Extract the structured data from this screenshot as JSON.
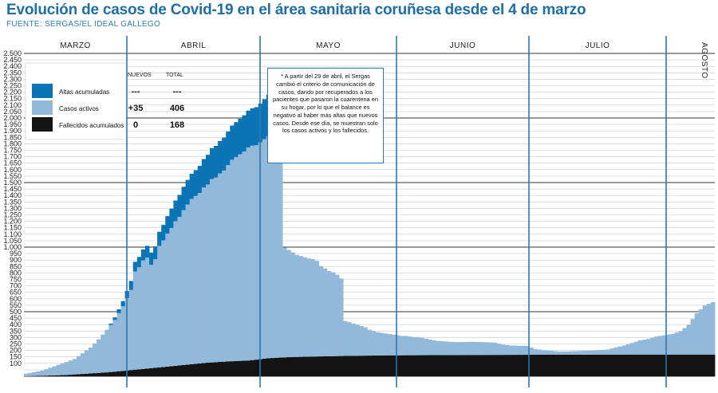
{
  "title": "Evolución de casos de Covid-19 en el área sanitaria coruñesa desde el 4 de marzo",
  "source": "FUENTE: SERGAS/EL IDEAL GALLEGO",
  "note": "* A partir del 29 de abril, el Sergas cambió el criterio de comunicación de casos, dando por recuperados a los pacientes que pasaron la cuarentena en su hogar, por lo que el balance es negativo al haber más altas que nuevos casos. Desde ese día, se muestran solo los casos activos y los fallecidos.",
  "legend": {
    "header_new": "NUEVOS",
    "header_total": "TOTAL",
    "rows": [
      {
        "label": "Altas acumuladas",
        "color": "#0a74b4",
        "new": "---",
        "total": "---"
      },
      {
        "label": "Casos activos",
        "color": "#93b9da",
        "new": "+35",
        "total": "406"
      },
      {
        "label": "Fallecidos acumulados",
        "color": "#141414",
        "new": "0",
        "total": "168"
      }
    ]
  },
  "chart_data": {
    "type": "area",
    "stacked": true,
    "ylim": [
      0,
      2500
    ],
    "y_ticks": [
      "100",
      "150",
      "200",
      "250",
      "300",
      "350",
      "400",
      "450",
      "500",
      "550",
      "600",
      "650",
      "700",
      "750",
      "800",
      "850",
      "900",
      "950",
      "1.000",
      "1.050",
      "1.100",
      "1.150",
      "1.200",
      "1.250",
      "1.300",
      "1.350",
      "1.400",
      "1.450",
      "1.500",
      "1.550",
      "1.600",
      "1.650",
      "1.700",
      "1.750",
      "1.800",
      "1.850",
      "1.900",
      "1.950",
      "2.000",
      "2.050",
      "2.100",
      "2.150",
      "2.200",
      "2.250",
      "2.300",
      "2.350",
      "2.400",
      "2.450",
      "2.500"
    ],
    "months": [
      "MARZO",
      "ABRIL",
      "MAYO",
      "JUNIO",
      "JULIO",
      "AGOSTO"
    ],
    "x_range": [
      "4 de marzo",
      "agosto"
    ],
    "grid": true,
    "legend_position": "top-left",
    "series": [
      {
        "name": "Fallecidos acumulados",
        "color": "#141414",
        "keypoints": [
          [
            0,
            0
          ],
          [
            5,
            5
          ],
          [
            10,
            10
          ],
          [
            15,
            20
          ],
          [
            20,
            30
          ],
          [
            25,
            45
          ],
          [
            30,
            60
          ],
          [
            35,
            75
          ],
          [
            40,
            90
          ],
          [
            45,
            105
          ],
          [
            50,
            115
          ],
          [
            55,
            122
          ],
          [
            58,
            132
          ],
          [
            60,
            140
          ],
          [
            65,
            148
          ],
          [
            70,
            152
          ],
          [
            80,
            158
          ],
          [
            90,
            162
          ],
          [
            110,
            165
          ],
          [
            130,
            167
          ],
          [
            150,
            168
          ],
          [
            170,
            168
          ]
        ]
      },
      {
        "name": "Casos activos",
        "color": "#93b9da",
        "keypoints": [
          [
            0,
            20
          ],
          [
            4,
            40
          ],
          [
            8,
            80
          ],
          [
            12,
            120
          ],
          [
            14,
            160
          ],
          [
            16,
            200
          ],
          [
            18,
            260
          ],
          [
            20,
            330
          ],
          [
            22,
            400
          ],
          [
            24,
            500
          ],
          [
            26,
            620
          ],
          [
            27,
            760
          ],
          [
            28,
            790
          ],
          [
            29,
            840
          ],
          [
            30,
            860
          ],
          [
            31,
            800
          ],
          [
            32,
            840
          ],
          [
            33,
            940
          ],
          [
            34,
            980
          ],
          [
            35,
            1030
          ],
          [
            36,
            1070
          ],
          [
            37,
            1120
          ],
          [
            38,
            1150
          ],
          [
            39,
            1200
          ],
          [
            40,
            1240
          ],
          [
            41,
            1280
          ],
          [
            42,
            1300
          ],
          [
            43,
            1320
          ],
          [
            44,
            1360
          ],
          [
            45,
            1380
          ],
          [
            46,
            1420
          ],
          [
            47,
            1430
          ],
          [
            48,
            1460
          ],
          [
            49,
            1480
          ],
          [
            50,
            1520
          ],
          [
            51,
            1560
          ],
          [
            52,
            1580
          ],
          [
            53,
            1600
          ],
          [
            54,
            1620
          ],
          [
            55,
            1650
          ],
          [
            56,
            1660
          ],
          [
            57,
            1660
          ],
          [
            58,
            1680
          ],
          [
            59,
            1700
          ],
          [
            60,
            1720
          ],
          [
            61,
            1740
          ],
          [
            62,
            1760
          ],
          [
            63,
            1770
          ],
          [
            64,
            850
          ],
          [
            65,
            830
          ],
          [
            66,
            810
          ],
          [
            67,
            790
          ],
          [
            68,
            780
          ],
          [
            69,
            770
          ],
          [
            70,
            760
          ],
          [
            71,
            755
          ],
          [
            72,
            740
          ],
          [
            73,
            700
          ],
          [
            74,
            680
          ],
          [
            75,
            660
          ],
          [
            76,
            650
          ],
          [
            77,
            630
          ],
          [
            78,
            600
          ],
          [
            79,
            270
          ],
          [
            80,
            260
          ],
          [
            81,
            250
          ],
          [
            82,
            240
          ],
          [
            83,
            230
          ],
          [
            84,
            220
          ],
          [
            85,
            200
          ],
          [
            86,
            190
          ],
          [
            87,
            180
          ],
          [
            88,
            175
          ],
          [
            89,
            170
          ],
          [
            90,
            165
          ],
          [
            91,
            160
          ],
          [
            92,
            155
          ],
          [
            93,
            150
          ],
          [
            94,
            150
          ],
          [
            95,
            145
          ],
          [
            96,
            140
          ],
          [
            97,
            140
          ],
          [
            98,
            135
          ],
          [
            100,
            120
          ],
          [
            102,
            110
          ],
          [
            104,
            105
          ],
          [
            106,
            100
          ],
          [
            108,
            100
          ],
          [
            110,
            102
          ],
          [
            112,
            100
          ],
          [
            114,
            98
          ],
          [
            116,
            95
          ],
          [
            118,
            80
          ],
          [
            120,
            72
          ],
          [
            122,
            70
          ],
          [
            124,
            68
          ],
          [
            126,
            45
          ],
          [
            128,
            35
          ],
          [
            130,
            30
          ],
          [
            132,
            25
          ],
          [
            134,
            25
          ],
          [
            136,
            27
          ],
          [
            138,
            30
          ],
          [
            140,
            32
          ],
          [
            142,
            35
          ],
          [
            144,
            40
          ],
          [
            146,
            55
          ],
          [
            148,
            70
          ],
          [
            150,
            90
          ],
          [
            152,
            110
          ],
          [
            154,
            120
          ],
          [
            156,
            140
          ],
          [
            158,
            150
          ],
          [
            160,
            160
          ],
          [
            162,
            180
          ],
          [
            164,
            230
          ],
          [
            166,
            320
          ],
          [
            168,
            380
          ],
          [
            170,
            406
          ]
        ]
      },
      {
        "name": "Altas acumuladas",
        "color": "#0a74b4",
        "keypoints": [
          [
            0,
            0
          ],
          [
            20,
            0
          ],
          [
            22,
            20
          ],
          [
            24,
            40
          ],
          [
            26,
            70
          ],
          [
            28,
            80
          ],
          [
            30,
            90
          ],
          [
            32,
            100
          ],
          [
            34,
            120
          ],
          [
            36,
            150
          ],
          [
            38,
            170
          ],
          [
            40,
            190
          ],
          [
            42,
            200
          ],
          [
            44,
            220
          ],
          [
            46,
            240
          ],
          [
            48,
            250
          ],
          [
            50,
            260
          ],
          [
            52,
            270
          ],
          [
            54,
            280
          ],
          [
            56,
            290
          ],
          [
            58,
            300
          ],
          [
            60,
            320
          ],
          [
            62,
            350
          ],
          [
            63,
            380
          ],
          [
            64,
            0
          ],
          [
            170,
            0
          ]
        ]
      }
    ]
  }
}
